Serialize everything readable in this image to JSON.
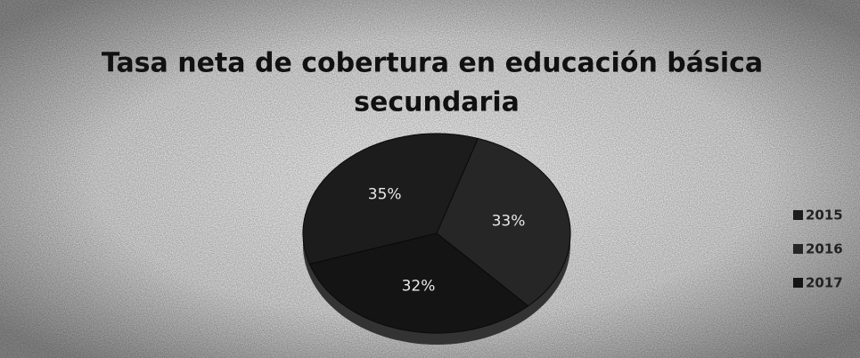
{
  "chart_data": {
    "type": "pie",
    "title": [
      "Tasa neta de cobertura en educación básica",
      "secundaria"
    ],
    "categories": [
      "2015",
      "2016",
      "2017"
    ],
    "values": [
      35,
      33,
      32
    ],
    "value_labels": [
      "35%",
      "33%",
      "32%"
    ],
    "colors": [
      "#1c1c1c",
      "#262626",
      "#141414"
    ],
    "legend": "right"
  }
}
